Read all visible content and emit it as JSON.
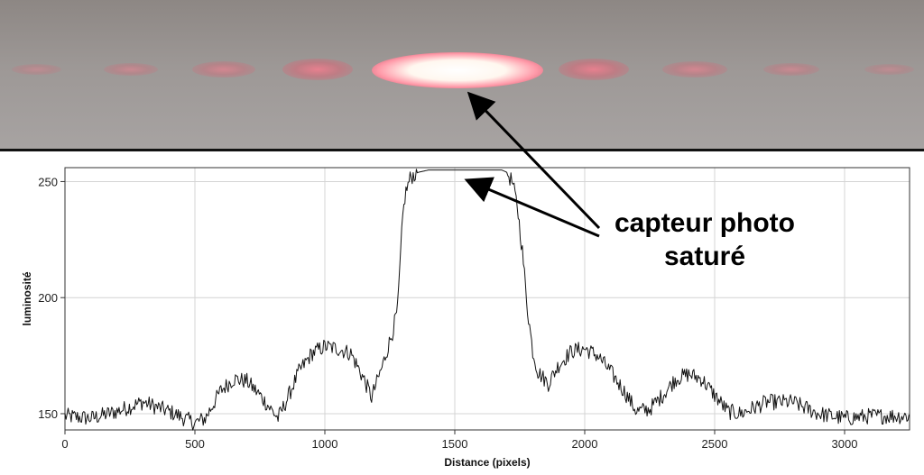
{
  "chart_data": {
    "type": "line",
    "xlabel": "Distance (pixels)",
    "ylabel": "luminosité",
    "xlim": [
      0,
      3250
    ],
    "ylim": [
      143,
      256
    ],
    "xticks": [
      0,
      500,
      1000,
      1500,
      2000,
      2500,
      3000
    ],
    "yticks": [
      150,
      200,
      250
    ],
    "grid": true,
    "series": [
      {
        "x": [
          0,
          100,
          200,
          300,
          400,
          500,
          540,
          600,
          650,
          700,
          750,
          820,
          850,
          900,
          950,
          1000,
          1050,
          1100,
          1150,
          1180,
          1220,
          1260,
          1280,
          1300,
          1310,
          1330,
          1360,
          1400,
          1500,
          1600,
          1680,
          1700,
          1720,
          1740,
          1760,
          1780,
          1800,
          1820,
          1860,
          1900,
          1950,
          2000,
          2050,
          2100,
          2150,
          2200,
          2250,
          2300,
          2350,
          2400,
          2450,
          2500,
          2550,
          2600,
          2700,
          2800,
          2900,
          3000,
          3100,
          3200,
          3250
        ],
        "y": [
          149,
          148,
          151,
          155,
          151,
          146,
          148,
          160,
          165,
          164,
          158,
          148,
          155,
          168,
          176,
          179,
          178,
          176,
          165,
          157,
          170,
          185,
          195,
          235,
          245,
          252,
          254,
          255,
          255,
          255,
          255,
          254,
          250,
          240,
          220,
          195,
          177,
          168,
          163,
          171,
          177,
          178,
          175,
          168,
          160,
          151,
          152,
          158,
          165,
          167,
          165,
          158,
          151,
          150,
          155,
          155,
          150,
          148,
          149,
          149,
          149
        ]
      }
    ],
    "annotations": [
      {
        "text_line1": "capteur photo",
        "text_line2": "saturé",
        "target": "saturated plateau and central bright spot"
      }
    ]
  },
  "colors": {
    "line": "#111111",
    "grid": "#d4d4d4",
    "photo_background": "#9b9694",
    "spot_core": "#fff6ee",
    "spot_glow": "#ff4f6a"
  }
}
